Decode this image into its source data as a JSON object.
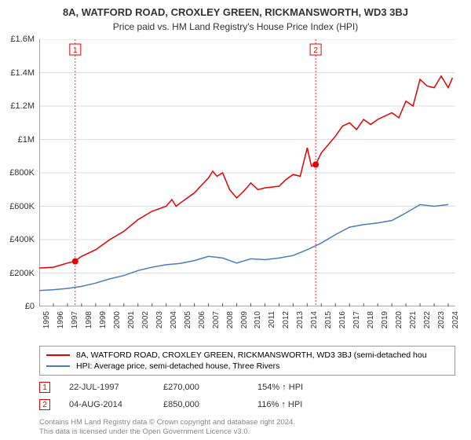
{
  "title": "8A, WATFORD ROAD, CROXLEY GREEN, RICKMANSWORTH, WD3 3BJ",
  "subtitle": "Price paid vs. HM Land Registry's House Price Index (HPI)",
  "chart": {
    "type": "line",
    "background_color": "#ffffff",
    "grid_color": "#dddddd",
    "axis_color": "#555555",
    "xlim": [
      1995,
      2024.5
    ],
    "ylim": [
      0,
      1600000
    ],
    "ytick_step": 200000,
    "y_labels": [
      "£0",
      "£200K",
      "£400K",
      "£600K",
      "£800K",
      "£1M",
      "£1.2M",
      "£1.4M",
      "£1.6M"
    ],
    "x_years": [
      1995,
      1996,
      1997,
      1998,
      1999,
      2000,
      2001,
      2002,
      2003,
      2004,
      2005,
      2006,
      2007,
      2008,
      2009,
      2010,
      2011,
      2012,
      2013,
      2014,
      2015,
      2016,
      2017,
      2018,
      2019,
      2020,
      2021,
      2022,
      2023,
      2024
    ],
    "series_property": {
      "label": "8A, WATFORD ROAD, CROXLEY GREEN, RICKMANSWORTH, WD3 3BJ (semi-detached hou",
      "color": "#e60000",
      "line_width": 1.5,
      "data": [
        [
          1995,
          230000
        ],
        [
          1996,
          235000
        ],
        [
          1997,
          260000
        ],
        [
          1997.5,
          270000
        ],
        [
          1998,
          300000
        ],
        [
          1999,
          340000
        ],
        [
          2000,
          400000
        ],
        [
          2001,
          450000
        ],
        [
          2002,
          520000
        ],
        [
          2003,
          570000
        ],
        [
          2004,
          600000
        ],
        [
          2004.4,
          640000
        ],
        [
          2004.7,
          600000
        ],
        [
          2005,
          620000
        ],
        [
          2006,
          680000
        ],
        [
          2007,
          770000
        ],
        [
          2007.3,
          810000
        ],
        [
          2007.6,
          780000
        ],
        [
          2008,
          800000
        ],
        [
          2008.5,
          700000
        ],
        [
          2009,
          650000
        ],
        [
          2009.5,
          690000
        ],
        [
          2010,
          740000
        ],
        [
          2010.5,
          700000
        ],
        [
          2011,
          710000
        ],
        [
          2012,
          720000
        ],
        [
          2012.5,
          760000
        ],
        [
          2013,
          790000
        ],
        [
          2013.5,
          780000
        ],
        [
          2014,
          950000
        ],
        [
          2014.3,
          840000
        ],
        [
          2014.6,
          850000
        ],
        [
          2015,
          920000
        ],
        [
          2016,
          1020000
        ],
        [
          2016.5,
          1080000
        ],
        [
          2017,
          1100000
        ],
        [
          2017.5,
          1060000
        ],
        [
          2018,
          1120000
        ],
        [
          2018.5,
          1090000
        ],
        [
          2019,
          1120000
        ],
        [
          2020,
          1160000
        ],
        [
          2020.5,
          1130000
        ],
        [
          2021,
          1230000
        ],
        [
          2021.5,
          1200000
        ],
        [
          2022,
          1360000
        ],
        [
          2022.5,
          1320000
        ],
        [
          2023,
          1310000
        ],
        [
          2023.5,
          1380000
        ],
        [
          2024,
          1310000
        ],
        [
          2024.3,
          1370000
        ]
      ]
    },
    "series_hpi": {
      "label": "HPI: Average price, semi-detached house, Three Rivers",
      "color": "#4a7ebb",
      "line_width": 1.5,
      "data": [
        [
          1995,
          95000
        ],
        [
          1996,
          100000
        ],
        [
          1997,
          108000
        ],
        [
          1998,
          120000
        ],
        [
          1999,
          140000
        ],
        [
          2000,
          165000
        ],
        [
          2001,
          185000
        ],
        [
          2002,
          215000
        ],
        [
          2003,
          235000
        ],
        [
          2004,
          250000
        ],
        [
          2005,
          258000
        ],
        [
          2006,
          275000
        ],
        [
          2007,
          300000
        ],
        [
          2008,
          290000
        ],
        [
          2009,
          260000
        ],
        [
          2010,
          285000
        ],
        [
          2011,
          280000
        ],
        [
          2012,
          290000
        ],
        [
          2013,
          305000
        ],
        [
          2014,
          340000
        ],
        [
          2015,
          380000
        ],
        [
          2016,
          430000
        ],
        [
          2017,
          475000
        ],
        [
          2018,
          490000
        ],
        [
          2019,
          500000
        ],
        [
          2020,
          515000
        ],
        [
          2021,
          560000
        ],
        [
          2022,
          610000
        ],
        [
          2023,
          600000
        ],
        [
          2024,
          610000
        ]
      ]
    },
    "sale_markers": [
      {
        "n": "1",
        "color": "#e60000",
        "date": "22-JUL-1997",
        "price": "£270,000",
        "pct": "154% ↑ HPI",
        "x": 1997.55,
        "y": 270000
      },
      {
        "n": "2",
        "color": "#e60000",
        "date": "04-AUG-2014",
        "price": "£850,000",
        "pct": "116% ↑ HPI",
        "x": 2014.6,
        "y": 850000
      }
    ]
  },
  "footer_line1": "Contains HM Land Registry data © Crown copyright and database right 2024.",
  "footer_line2": "This data is licensed under the Open Government Licence v3.0."
}
